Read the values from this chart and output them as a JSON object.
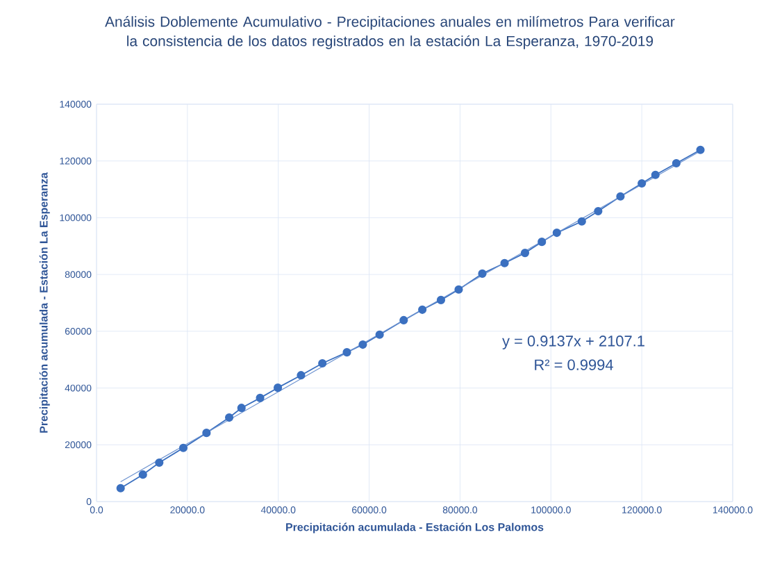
{
  "chart_data": {
    "type": "line",
    "title": "Análisis Doblemente Acumulativo - Precipitaciones anuales en milímetros Para verificar la consistencia de los datos registrados en la estación La Esperanza, 1970-2019",
    "xlabel": "Precipitación acumulada - Estación Los Palomos",
    "ylabel": "Precipitación acumulada - Estación La Esperanza",
    "xlim": [
      0,
      140000
    ],
    "ylim": [
      0,
      140000
    ],
    "xticks": [
      {
        "value": 0,
        "label": "0.0"
      },
      {
        "value": 20000,
        "label": "20000.0"
      },
      {
        "value": 40000,
        "label": "40000.0"
      },
      {
        "value": 60000,
        "label": "60000.0"
      },
      {
        "value": 80000,
        "label": "80000.0"
      },
      {
        "value": 100000,
        "label": "100000.0"
      },
      {
        "value": 120000,
        "label": "120000.0"
      },
      {
        "value": 140000,
        "label": "140000.0"
      }
    ],
    "yticks": [
      0,
      20000,
      40000,
      60000,
      80000,
      100000,
      120000,
      140000
    ],
    "grid": true,
    "series": [
      {
        "marker": "circle",
        "color": "#3b70c0",
        "x": [
          5300,
          10200,
          13800,
          19100,
          24200,
          29200,
          31900,
          36000,
          39900,
          45000,
          49700,
          55100,
          58600,
          62300,
          67600,
          71700,
          75800,
          79700,
          84900,
          89800,
          94300,
          98000,
          101300,
          106800,
          110400,
          115300,
          120000,
          123000,
          127600,
          132900
        ],
        "values": [
          4700,
          9500,
          13700,
          18900,
          24200,
          29600,
          33000,
          36500,
          40100,
          44500,
          48700,
          52600,
          55300,
          58800,
          63900,
          67600,
          71000,
          74700,
          80300,
          84000,
          87600,
          91500,
          94700,
          98700,
          102300,
          107500,
          112100,
          115100,
          119200,
          123900
        ]
      },
      {
        "type": "line",
        "marker": "none",
        "color": "#6f94d0",
        "x": [
          5300,
          132900
        ],
        "values": [
          7000,
          123500
        ]
      }
    ],
    "annotations": [
      "y = 0.9137x + 2107.1",
      "R² = 0.9994"
    ]
  }
}
